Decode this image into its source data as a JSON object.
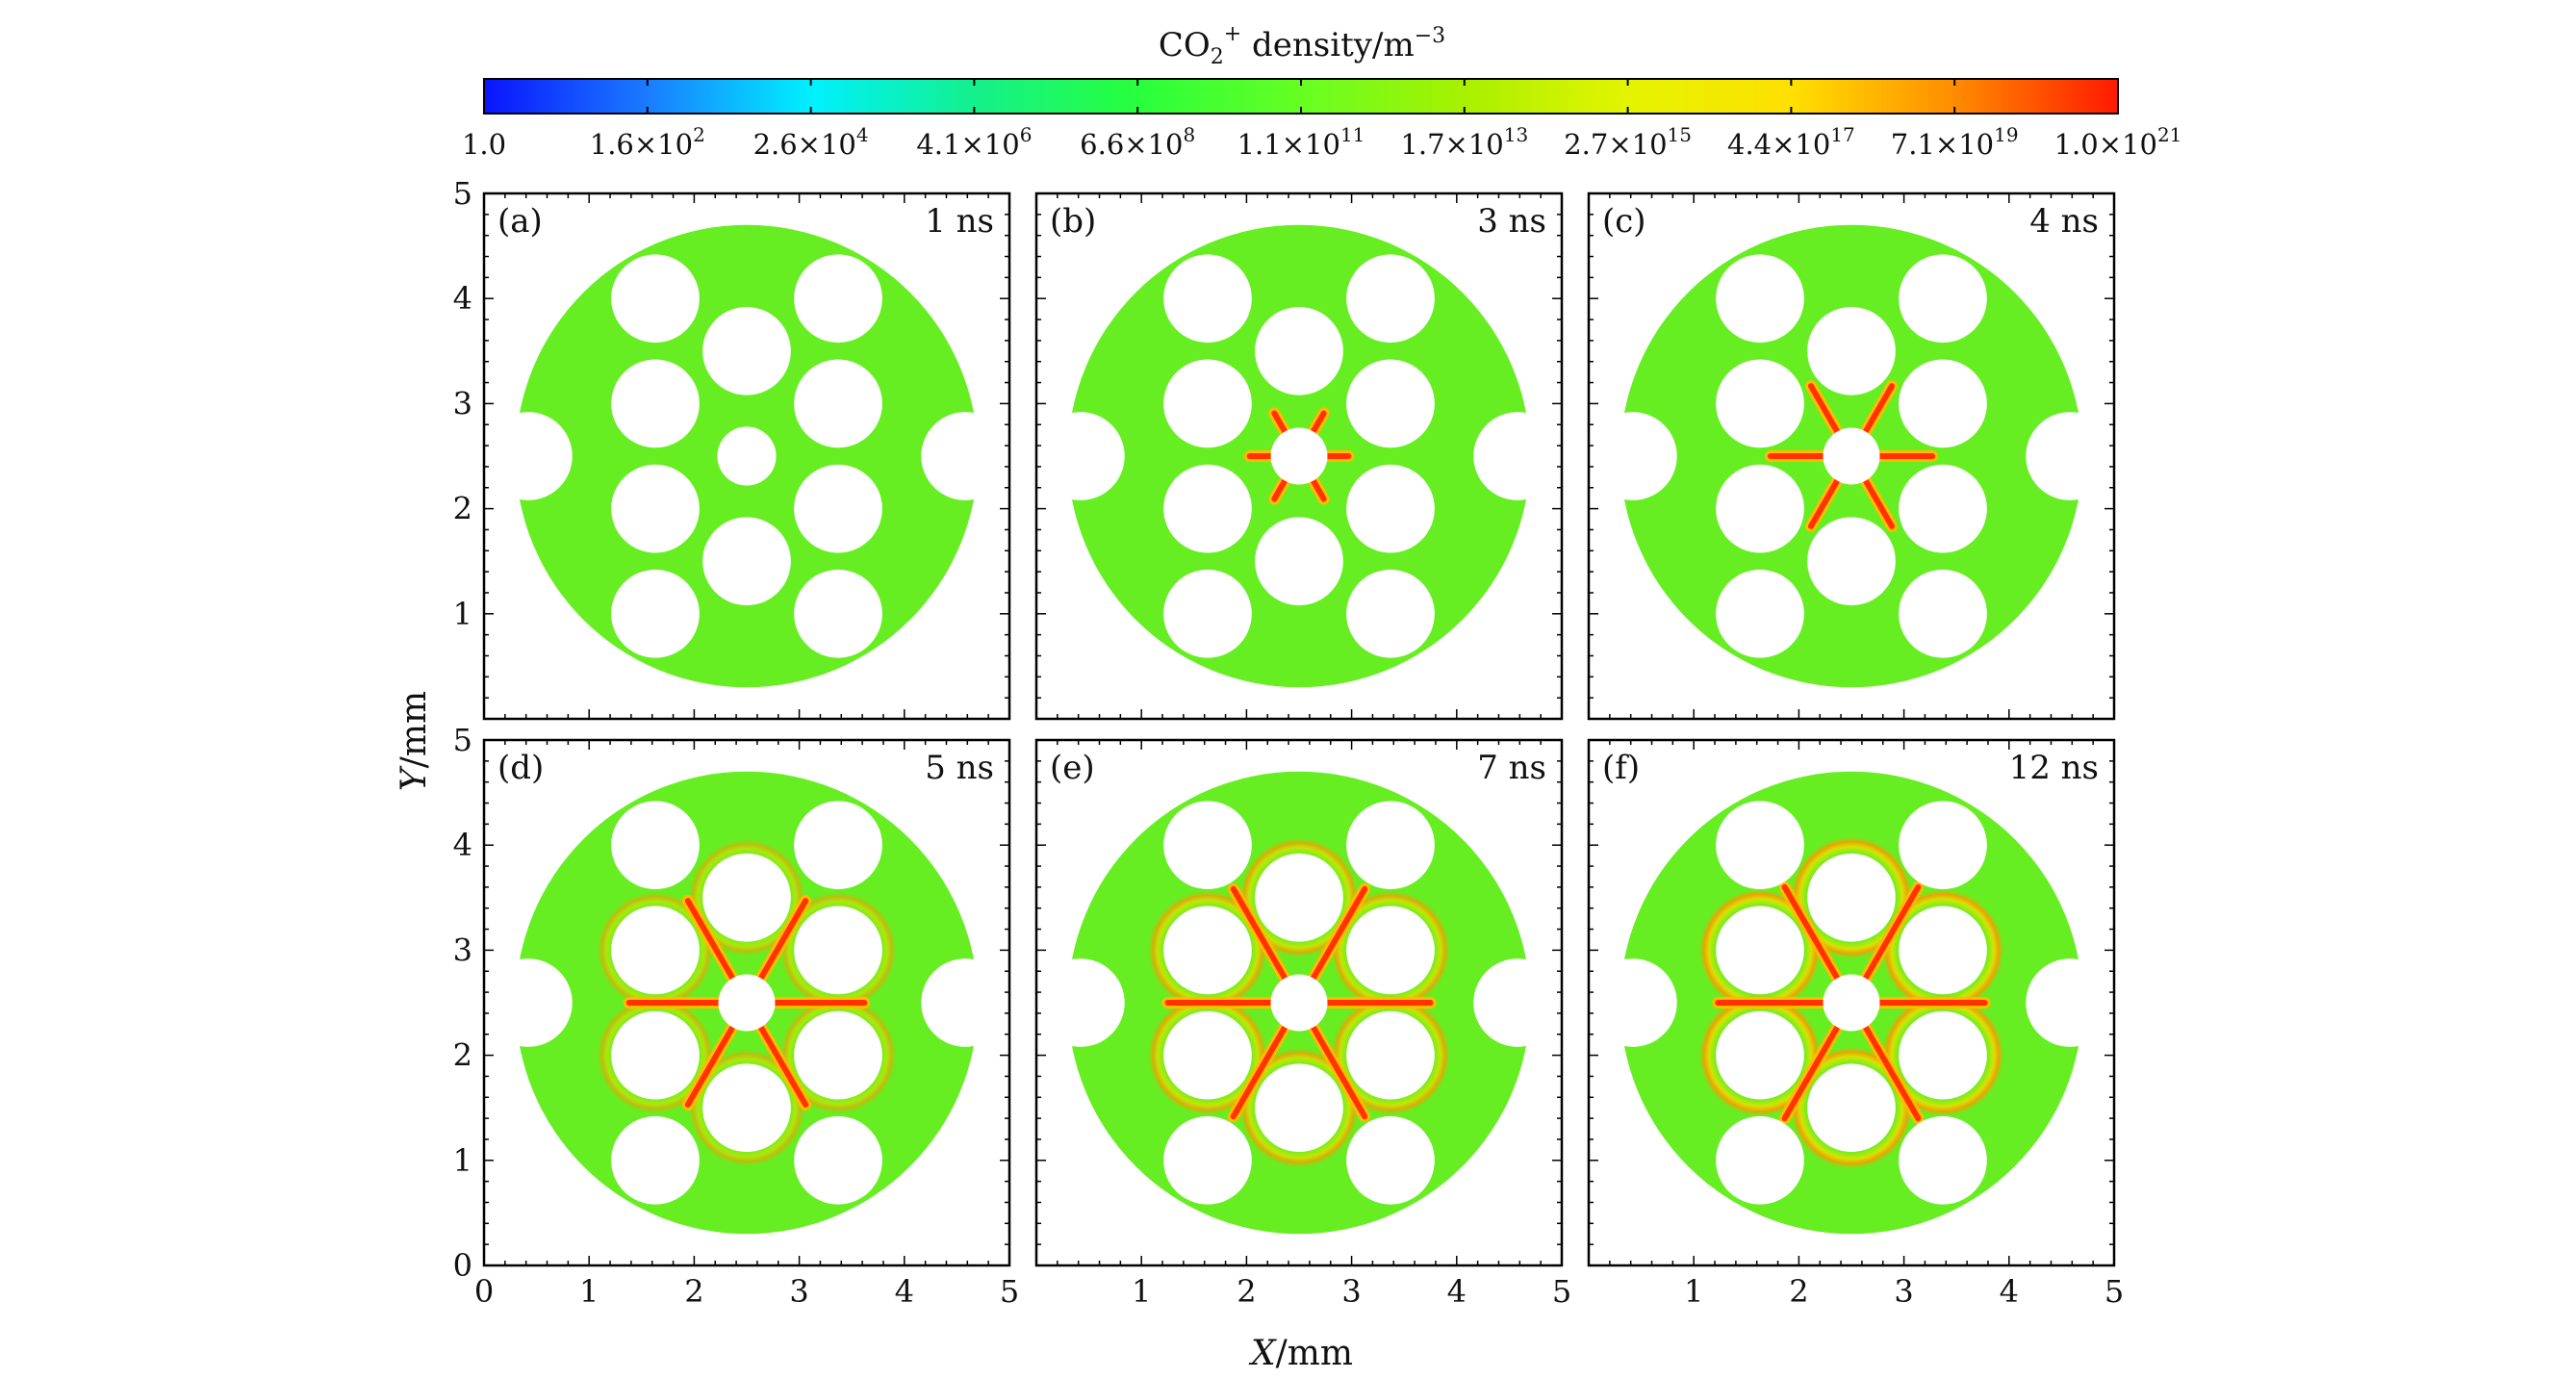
{
  "colorbar": {
    "title_main": "CO",
    "title_sub": "2",
    "title_sup": "+",
    "title_rest": " density/m",
    "title_exp": "−3",
    "ticks": [
      {
        "m": "1.0",
        "e": ""
      },
      {
        "m": "1.6×10",
        "e": "2"
      },
      {
        "m": "2.6×10",
        "e": "4"
      },
      {
        "m": "4.1×10",
        "e": "6"
      },
      {
        "m": "6.6×10",
        "e": "8"
      },
      {
        "m": "1.1×10",
        "e": "11"
      },
      {
        "m": "1.7×10",
        "e": "13"
      },
      {
        "m": "2.7×10",
        "e": "15"
      },
      {
        "m": "4.4×10",
        "e": "17"
      },
      {
        "m": "7.1×10",
        "e": "19"
      },
      {
        "m": "1.0×10",
        "e": "21"
      }
    ],
    "colors": [
      "#0a14ff",
      "#1a7cff",
      "#00f0ff",
      "#14f08c",
      "#28ff3c",
      "#66ff22",
      "#a8f000",
      "#e4f400",
      "#ffe000",
      "#ff8c00",
      "#ff1a00"
    ]
  },
  "axes": {
    "xlabel_var": "X",
    "xlabel_unit": "/mm",
    "ylabel_var": "Y",
    "ylabel_unit": "/mm",
    "ticks": [
      "0",
      "1",
      "2",
      "3",
      "4",
      "5"
    ]
  },
  "colors": {
    "background_gas": "#66ee22",
    "streamer_core": "#ff3300",
    "streamer_edge": "#ffbb00",
    "glow": "#dde400"
  },
  "chart_data": {
    "type": "heatmap",
    "quantity": "CO2+ density",
    "unit": "m^-3",
    "colorbar_log_range": [
      1.0,
      1e+21
    ],
    "x_range_mm": [
      0,
      5
    ],
    "y_range_mm": [
      0,
      5
    ],
    "geometry": {
      "domain_center_mm": [
        2.5,
        2.5
      ],
      "domain_radius_mm": 2.2,
      "central_hole_radius_mm": 0.27,
      "central_hole_radius_panel_a_mm": 0.28,
      "hole_radius_mm": 0.42,
      "holes_mm": [
        [
          0.42,
          2.5
        ],
        [
          4.58,
          2.5
        ],
        [
          2.5,
          3.5
        ],
        [
          2.5,
          1.5
        ],
        [
          1.63,
          3.0
        ],
        [
          3.37,
          3.0
        ],
        [
          1.63,
          2.0
        ],
        [
          3.37,
          2.0
        ],
        [
          1.63,
          4.0
        ],
        [
          3.37,
          4.0
        ],
        [
          1.63,
          1.0
        ],
        [
          3.37,
          1.0
        ]
      ]
    },
    "panels": [
      {
        "label": "(a)",
        "time": "1 ns",
        "streamer_length_mm": 0.0,
        "glow": 0
      },
      {
        "label": "(b)",
        "time": "3 ns",
        "streamer_length_mm": 0.2,
        "glow": 0
      },
      {
        "label": "(c)",
        "time": "4 ns",
        "streamer_length_mm": 0.5,
        "glow": 0
      },
      {
        "label": "(d)",
        "time": "5 ns",
        "streamer_length_mm": 0.85,
        "glow": 1
      },
      {
        "label": "(e)",
        "time": "7 ns",
        "streamer_length_mm": 0.98,
        "glow": 2
      },
      {
        "label": "(f)",
        "time": "12 ns",
        "streamer_length_mm": 1.0,
        "glow": 3
      }
    ]
  }
}
